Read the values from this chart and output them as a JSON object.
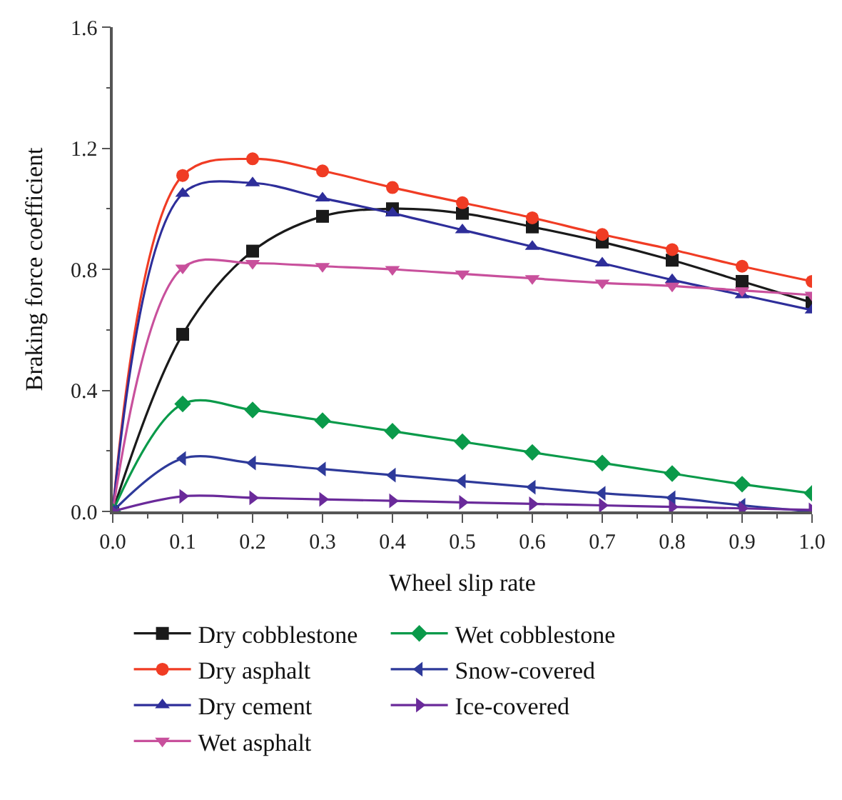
{
  "chart_data": {
    "type": "line",
    "xlabel": "Wheel slip rate",
    "ylabel": "Braking force coefficient",
    "x": [
      0,
      0.1,
      0.2,
      0.3,
      0.4,
      0.5,
      0.6,
      0.7,
      0.8,
      0.9,
      1.0
    ],
    "xlim": [
      0,
      1.0
    ],
    "xticks": [
      {
        "value": 0,
        "label": "0.0"
      },
      0.1,
      0.2,
      0.3,
      0.4,
      0.5,
      0.6,
      0.7,
      0.8,
      0.9,
      {
        "value": 1.0,
        "label": "1.0"
      }
    ],
    "ylim": [
      0,
      1.6
    ],
    "yticks": [
      {
        "value": 0,
        "label": "0.0"
      },
      0.4,
      0.8,
      1.2,
      {
        "value": 1.6,
        "label": "1.6"
      }
    ],
    "legend": "bottom",
    "line_style": "solid",
    "series": [
      {
        "name": "Dry cobblestone",
        "color": "#1a1a1a",
        "marker": "square",
        "values": [
          0,
          0.585,
          0.86,
          0.975,
          1.0,
          0.985,
          0.94,
          0.89,
          0.83,
          0.76,
          0.69
        ]
      },
      {
        "name": "Dry asphalt",
        "color": "#f03c24",
        "marker": "circle",
        "values": [
          0,
          1.11,
          1.165,
          1.125,
          1.07,
          1.02,
          0.97,
          0.915,
          0.865,
          0.81,
          0.76
        ]
      },
      {
        "name": "Dry cement",
        "color": "#2e2e9a",
        "marker": "triangle",
        "values": [
          0,
          1.05,
          1.085,
          1.035,
          0.985,
          0.93,
          0.875,
          0.82,
          0.765,
          0.715,
          0.665
        ]
      },
      {
        "name": "Wet asphalt",
        "color": "#c8509c",
        "marker": "triangle-down",
        "values": [
          0,
          0.805,
          0.82,
          0.81,
          0.8,
          0.785,
          0.77,
          0.755,
          0.745,
          0.73,
          0.715
        ]
      },
      {
        "name": "Wet cobblestone",
        "color": "#0a9a4a",
        "marker": "diamond",
        "values": [
          0,
          0.355,
          0.335,
          0.3,
          0.265,
          0.23,
          0.195,
          0.16,
          0.125,
          0.09,
          0.06
        ]
      },
      {
        "name": "Snow-covered",
        "color": "#2e3a9a",
        "marker": "triangle-left",
        "values": [
          0,
          0.175,
          0.16,
          0.14,
          0.12,
          0.1,
          0.08,
          0.06,
          0.045,
          0.02,
          0.0
        ]
      },
      {
        "name": "Ice-covered",
        "color": "#6a2a9a",
        "marker": "triangle-right",
        "values": [
          0,
          0.05,
          0.045,
          0.04,
          0.035,
          0.03,
          0.025,
          0.02,
          0.015,
          0.01,
          0.005
        ]
      }
    ]
  }
}
